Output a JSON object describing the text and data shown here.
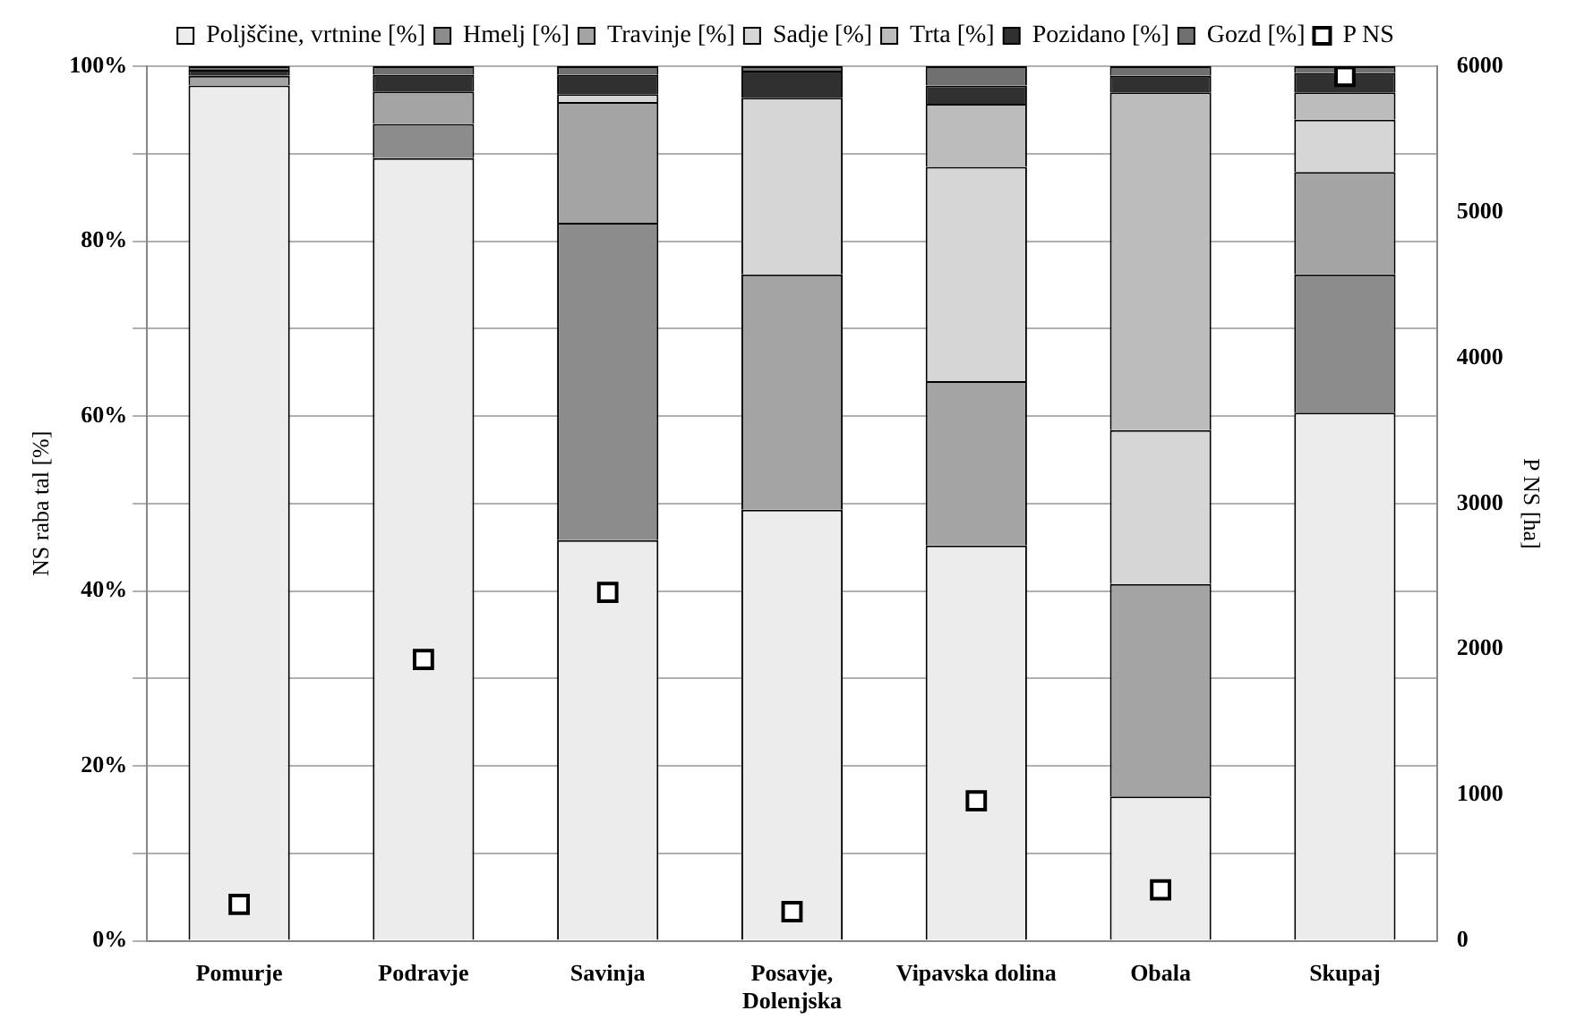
{
  "chart_data": {
    "type": "bar",
    "stacked": true,
    "ylabel": "NS raba tal [%]",
    "y2label": "P NS [ha]",
    "categories": [
      "Pomurje",
      "Podravje",
      "Savinja",
      "Posavje, Dolenjska",
      "Vipavska dolina",
      "Obala",
      "Skupaj"
    ],
    "series": [
      {
        "name": "Poljščine, vrtnine [%]",
        "color": "#ececec",
        "values": [
          97.8,
          89.5,
          45.8,
          49.3,
          45.2,
          16.5,
          60.4
        ]
      },
      {
        "name": "Hmelj [%]",
        "color": "#8c8c8c",
        "values": [
          0,
          3.9,
          36.3,
          0,
          0,
          0,
          15.8
        ]
      },
      {
        "name": "Travinje [%]",
        "color": "#a4a4a4",
        "values": [
          1.1,
          3.7,
          13.8,
          26.9,
          18.8,
          24.3,
          11.7
        ]
      },
      {
        "name": "Sadje [%]",
        "color": "#d6d6d6",
        "values": [
          0,
          0,
          0.9,
          20.2,
          24.5,
          17.6,
          6.0
        ]
      },
      {
        "name": "Trta [%]",
        "color": "#bcbcbc",
        "values": [
          0,
          0,
          0,
          0,
          7.2,
          38.6,
          3.1
        ]
      },
      {
        "name": "Pozidano [%]",
        "color": "#303030",
        "values": [
          0.7,
          1.9,
          2.2,
          3.1,
          2.1,
          1.9,
          2.2
        ]
      },
      {
        "name": "Gozd [%]",
        "color": "#707070",
        "values": [
          0.4,
          1.0,
          1.0,
          0.5,
          2.2,
          1.1,
          0.8
        ]
      },
      {
        "name": "P NS",
        "type": "scatter",
        "axis": "y2",
        "marker": "square",
        "color": "#ffffff",
        "values": [
          250,
          1930,
          2390,
          200,
          960,
          350,
          5930
        ]
      }
    ],
    "ylim": [
      0,
      100
    ],
    "yticks": [
      {
        "value": 0,
        "label": "0%"
      },
      {
        "value": 20,
        "label": "20%"
      },
      {
        "value": 40,
        "label": "40%"
      },
      {
        "value": 60,
        "label": "60%"
      },
      {
        "value": 80,
        "label": "80%"
      },
      {
        "value": 100,
        "label": "100%"
      }
    ],
    "y2lim": [
      0,
      6000
    ],
    "y2ticks": [
      0,
      1000,
      2000,
      3000,
      4000,
      5000,
      6000
    ],
    "grid": "y",
    "legend": "top"
  }
}
